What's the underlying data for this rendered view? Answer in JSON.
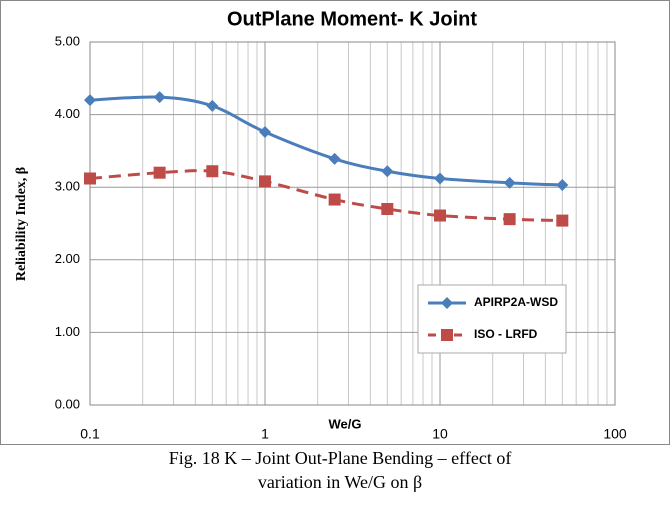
{
  "chart_data": {
    "type": "line",
    "title": "OutPlane Moment- K Joint",
    "xlabel": "We/G",
    "ylabel": "Reliability Index, β",
    "caption": "Fig. 18 K – Joint Out-Plane Bending – effect of variation in We/G on β",
    "x": [
      0.1,
      0.25,
      0.5,
      1,
      2.5,
      5,
      10,
      25,
      50
    ],
    "series": [
      {
        "name": "APIRP2A-WSD",
        "color": "#4a7ebb",
        "marker": "diamond",
        "dash": false,
        "values": [
          4.2,
          4.24,
          4.12,
          3.76,
          3.39,
          3.22,
          3.12,
          3.06,
          3.03
        ]
      },
      {
        "name": "ISO - LRFD",
        "color": "#be4b48",
        "marker": "square",
        "dash": true,
        "values": [
          3.12,
          3.2,
          3.22,
          3.08,
          2.83,
          2.7,
          2.61,
          2.56,
          2.54
        ]
      }
    ],
    "xscale": "log",
    "xlim": [
      0.1,
      100
    ],
    "xticks": [
      0.1,
      1,
      10,
      100
    ],
    "xminorticks": [
      0.2,
      0.3,
      0.4,
      0.5,
      0.6,
      0.7,
      0.8,
      0.9,
      2,
      3,
      4,
      5,
      6,
      7,
      8,
      9,
      20,
      30,
      40,
      50,
      60,
      70,
      80,
      90
    ],
    "ylim": [
      0,
      5
    ],
    "yticks": [
      {
        "value": 0,
        "label": "0.00"
      },
      {
        "value": 1,
        "label": "1.00"
      },
      {
        "value": 2,
        "label": "2.00"
      },
      {
        "value": 3,
        "label": "3.00"
      },
      {
        "value": 4,
        "label": "4.00"
      },
      {
        "value": 5,
        "label": "5.00"
      }
    ],
    "grid": true,
    "legend": "lower right"
  }
}
